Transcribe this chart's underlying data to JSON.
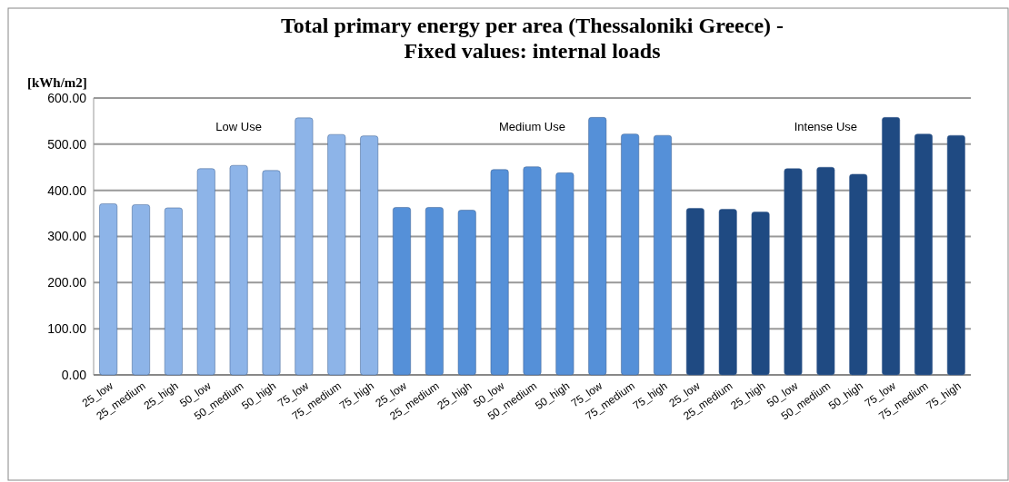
{
  "chart_data": {
    "type": "bar",
    "title": "Total primary energy per area (Thessaloniki Greece) -\nFixed values: internal loads",
    "ylabel": "[kWh/m2]",
    "categories": [
      "25_low",
      "25_medium",
      "25_high",
      "50_low",
      "50_medium",
      "50_high",
      "75_low",
      "75_medium",
      "75_high",
      "25_low",
      "25_medium",
      "25_high",
      "50_low",
      "50_medium",
      "50_high",
      "75_low",
      "75_medium",
      "75_high",
      "25_low",
      "25_medium",
      "25_high",
      "50_low",
      "50_medium",
      "50_high",
      "75_low",
      "75_medium",
      "75_high"
    ],
    "values": [
      371,
      369,
      362,
      447,
      454,
      443,
      557,
      521,
      518,
      363,
      363,
      357,
      445,
      451,
      438,
      558,
      522,
      519,
      361,
      359,
      353,
      447,
      450,
      435,
      558,
      522,
      519
    ],
    "colors": [
      "#8db4e8",
      "#8db4e8",
      "#8db4e8",
      "#8db4e8",
      "#8db4e8",
      "#8db4e8",
      "#8db4e8",
      "#8db4e8",
      "#8db4e8",
      "#5590d8",
      "#5590d8",
      "#5590d8",
      "#5590d8",
      "#5590d8",
      "#5590d8",
      "#5590d8",
      "#5590d8",
      "#5590d8",
      "#1f4a82",
      "#1f4a82",
      "#1f4a82",
      "#1f4a82",
      "#1f4a82",
      "#1f4a82",
      "#1f4a82",
      "#1f4a82",
      "#1f4a82"
    ],
    "annotations": [
      "Low Use",
      "Medium Use",
      "Intense Use"
    ],
    "ylim": [
      0,
      600
    ],
    "yticks": [
      {
        "value": 0,
        "label": "0.00"
      },
      {
        "value": 100,
        "label": "100.00"
      },
      {
        "value": 200,
        "label": "200.00"
      },
      {
        "value": 300,
        "label": "300.00"
      },
      {
        "value": 400,
        "label": "400.00"
      },
      {
        "value": 500,
        "label": "500.00"
      },
      {
        "value": 600,
        "label": "600.00"
      }
    ],
    "grid": "y"
  }
}
